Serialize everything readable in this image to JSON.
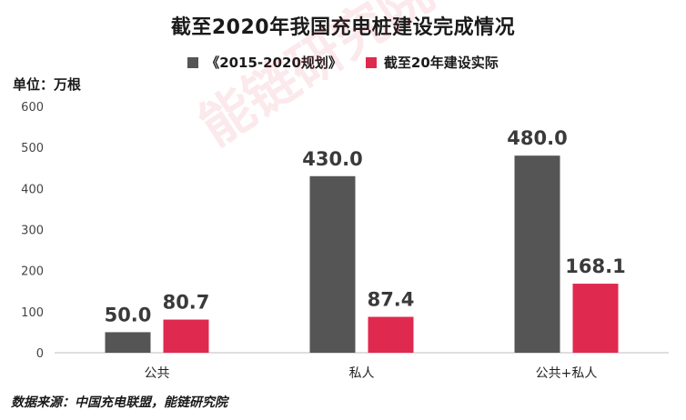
{
  "title": "截至2020年我国充电桩建设完成情况",
  "unit_label": "单位：万根",
  "source": "数据来源：中国充电联盟，能链研究院",
  "watermark": "能链研究院",
  "colors": {
    "planned": "#555555",
    "actual": "#e0294f",
    "axis": "#bdbdbd"
  },
  "chart_data": {
    "type": "bar",
    "title": "截至2020年我国充电桩建设完成情况",
    "categories": [
      "公共",
      "私人",
      "公共+私人"
    ],
    "series": [
      {
        "name": "《2015-2020规划》",
        "values": [
          50.0,
          430.0,
          480.0
        ],
        "labels": [
          "50.0",
          "430.0",
          "480.0"
        ]
      },
      {
        "name": "截至20年建设实际",
        "values": [
          80.7,
          87.4,
          168.1
        ],
        "labels": [
          "80.7",
          "87.4",
          "168.1"
        ]
      }
    ],
    "ylim": [
      0,
      600
    ],
    "yticks": [
      "0",
      "100",
      "200",
      "300",
      "400",
      "500",
      "600"
    ],
    "legend": "top",
    "grid": false
  }
}
